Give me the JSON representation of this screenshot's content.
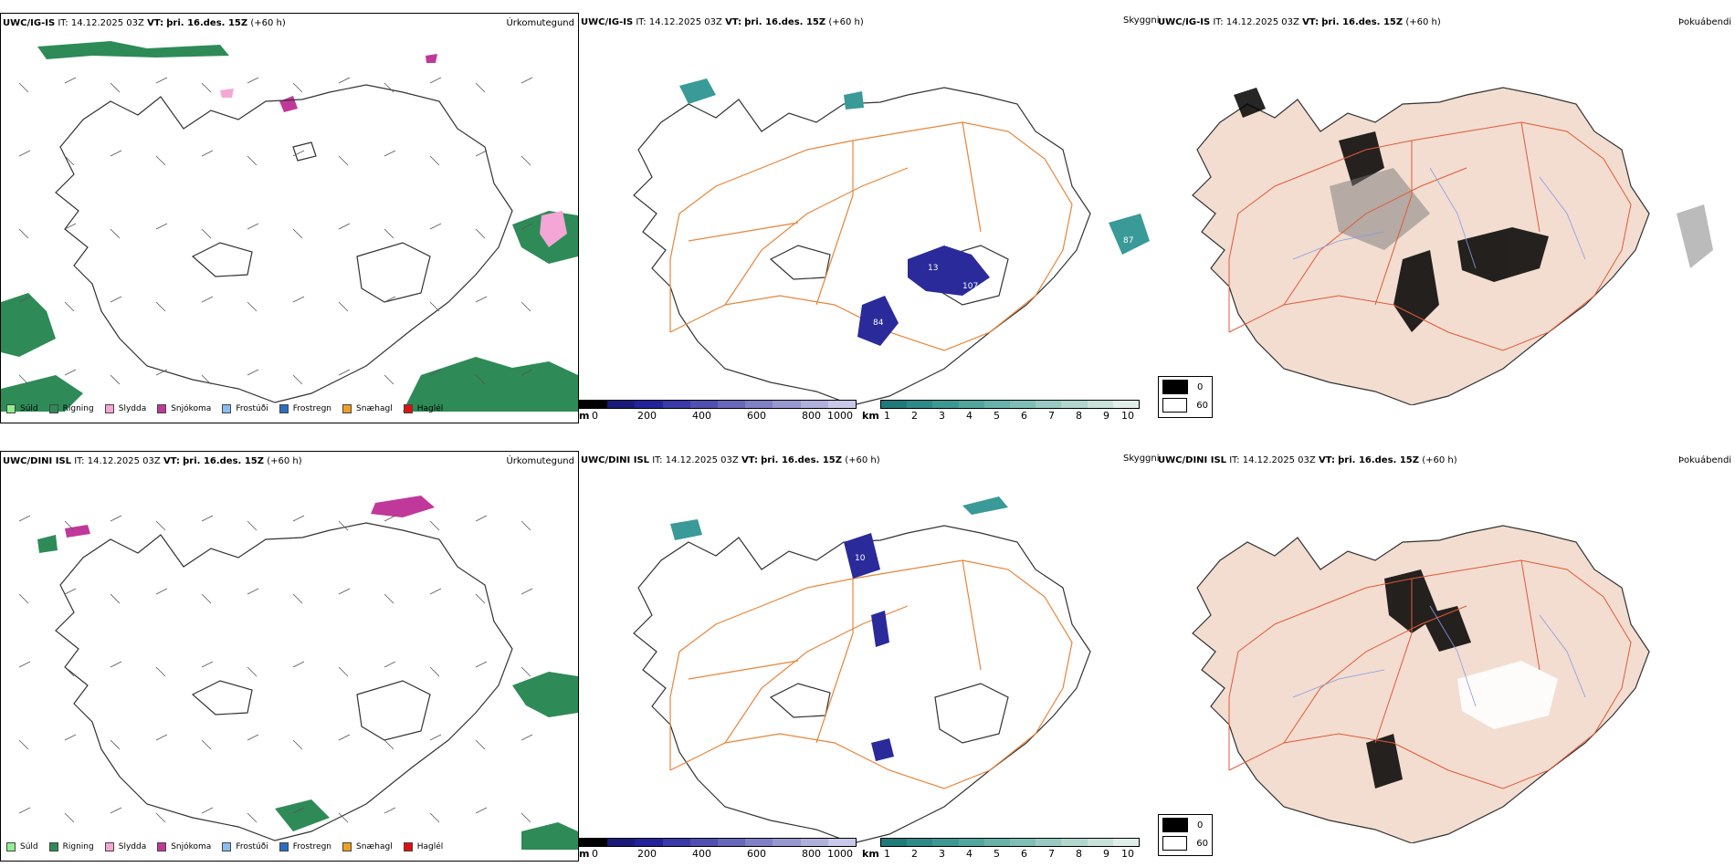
{
  "rows": [
    {
      "model_label": "UWC/IG-IS",
      "it_label": "IT:",
      "it_value": "14.12.2025 03Z",
      "vt_label": "VT:",
      "vt_value": "þri. 16.des. 15Z",
      "lead": "(+60 h)"
    },
    {
      "model_label": "UWC/DINI ISL",
      "it_label": "IT:",
      "it_value": "14.12.2025 03Z",
      "vt_label": "VT:",
      "vt_value": "þri. 16.des. 15Z",
      "lead": "(+60 h)"
    }
  ],
  "panel_types": {
    "precip": "Úrkomutegund",
    "visibility": "Skyggni",
    "cloud": "Þokuábendi"
  },
  "precip_legend": [
    {
      "label": "Súld",
      "color": "#90ee90"
    },
    {
      "label": "Rigning",
      "color": "#2e8b57"
    },
    {
      "label": "Slydda",
      "color": "#f4a6d6"
    },
    {
      "label": "Snjókoma",
      "color": "#c0399a"
    },
    {
      "label": "Frostúði",
      "color": "#87bdf0"
    },
    {
      "label": "Frostregn",
      "color": "#2a6fc2"
    },
    {
      "label": "Snæhagl",
      "color": "#f0a020"
    },
    {
      "label": "Haglél",
      "color": "#e01010"
    }
  ],
  "height_bar": {
    "unit": "m",
    "ticks": [
      "0",
      "200",
      "400",
      "600",
      "800",
      "1000"
    ],
    "colors": [
      "#000000",
      "#1a1a7a",
      "#22229a",
      "#3a3aa8",
      "#5050b0",
      "#6868bb",
      "#8080c6",
      "#9898d0",
      "#b0b0dc",
      "#c8c8e8"
    ]
  },
  "visibility_bar": {
    "unit": "km",
    "ticks": [
      "1",
      "2",
      "3",
      "4",
      "5",
      "6",
      "7",
      "8",
      "9",
      "10"
    ],
    "colors": [
      "#1f7a7a",
      "#2e8a88",
      "#3e9892",
      "#52a69e",
      "#68b2aa",
      "#80beb6",
      "#98cac2",
      "#b0d6ce",
      "#c8e2da",
      "#e0eee8"
    ]
  },
  "fog_legend": [
    {
      "label": "0",
      "color": "#000000"
    },
    {
      "label": "60",
      "color": "#ffffff"
    }
  ],
  "map_labels": {
    "row1_vis": [
      "13",
      "107",
      "84",
      "87"
    ],
    "row2_vis": [
      "10"
    ]
  },
  "colors": {
    "roads": "#e8853a",
    "rivers": "#8a9ae8",
    "land_fill": "#f2ddd0",
    "coast": "#333333",
    "ice_blue": "#2a2a9a",
    "teal": "#3a9a98",
    "rain_green": "#2e8b57",
    "snow_magenta": "#c0399a",
    "sleet_pink": "#f4a6d6"
  }
}
